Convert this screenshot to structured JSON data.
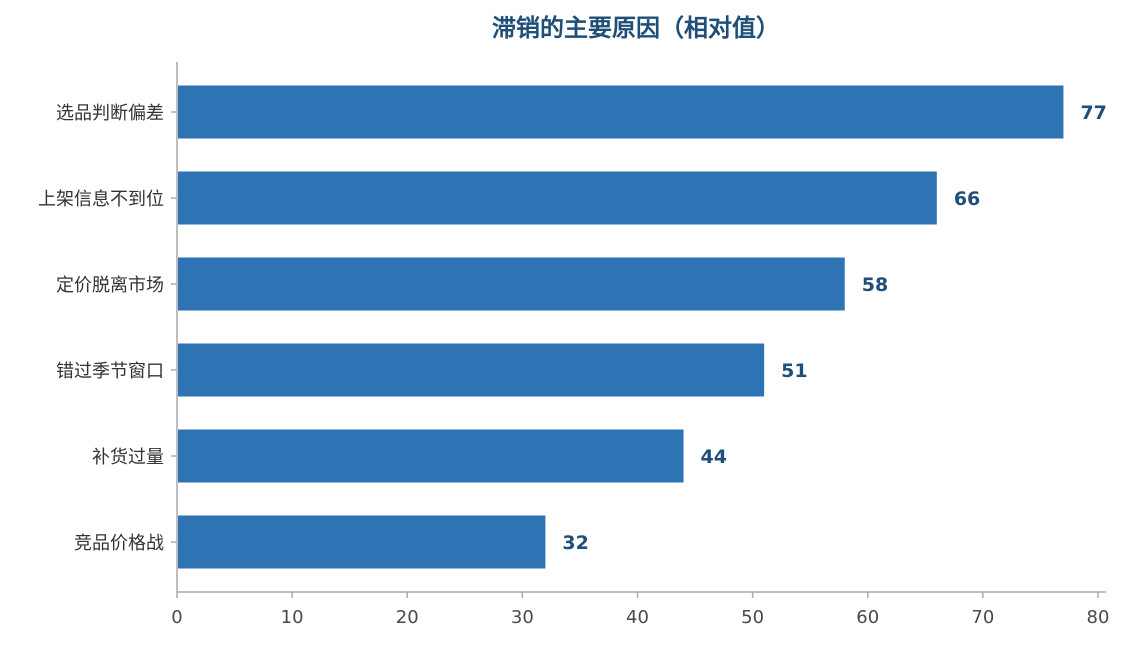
{
  "chart_data": {
    "type": "bar",
    "orientation": "horizontal",
    "title": "滞销的主要原因（相对值）",
    "xlabel": "",
    "ylabel": "",
    "categories": [
      "选品判断偏差",
      "上架信息不到位",
      "定价脱离市场",
      "错过季节窗口",
      "补货过量",
      "竞品价格战"
    ],
    "values": [
      77,
      66,
      58,
      51,
      44,
      32
    ],
    "xlim": [
      0,
      80
    ],
    "xticks": [
      0,
      10,
      20,
      30,
      40,
      50,
      60,
      70,
      80
    ],
    "grid": false,
    "legend": "none",
    "data_labels": true,
    "colors": {
      "bar": "#2e74b5",
      "title": "#1f4e79",
      "value_label": "#1f4e79",
      "axis": "#aaaaaa"
    }
  }
}
